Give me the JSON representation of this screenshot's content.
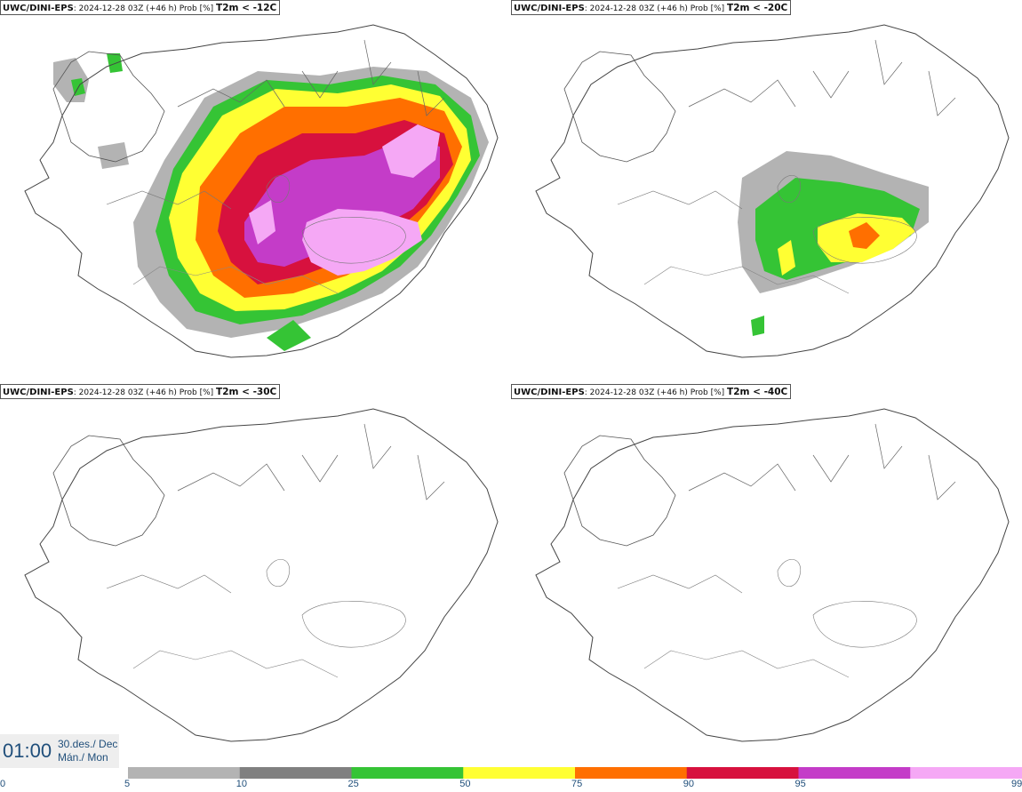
{
  "panels": [
    {
      "model": "UWC/DINI-EPS",
      "info": ": 2024-12-28 03Z (+46 h) Prob [%]",
      "threshold": "T2m < -12C"
    },
    {
      "model": "UWC/DINI-EPS",
      "info": ": 2024-12-28 03Z (+46 h) Prob [%]",
      "threshold": "T2m < -20C"
    },
    {
      "model": "UWC/DINI-EPS",
      "info": ": 2024-12-28 03Z (+46 h) Prob [%]",
      "threshold": "T2m < -30C"
    },
    {
      "model": "UWC/DINI-EPS",
      "info": ": 2024-12-28 03Z (+46 h) Prob [%]",
      "threshold": "T2m < -40C"
    }
  ],
  "time": {
    "clock": "01:00",
    "date_line1": "30.des./ Dec",
    "date_line2": "Mán./ Mon"
  },
  "colorbar": {
    "ticks": [
      "0",
      "5",
      "10",
      "25",
      "50",
      "75",
      "90",
      "95",
      "99"
    ],
    "colors": [
      "#b3b3b3",
      "#808080",
      "#35c435",
      "#ffff33",
      "#ff6f00",
      "#d7113e",
      "#c43cc8",
      "#f5a8f5"
    ]
  }
}
